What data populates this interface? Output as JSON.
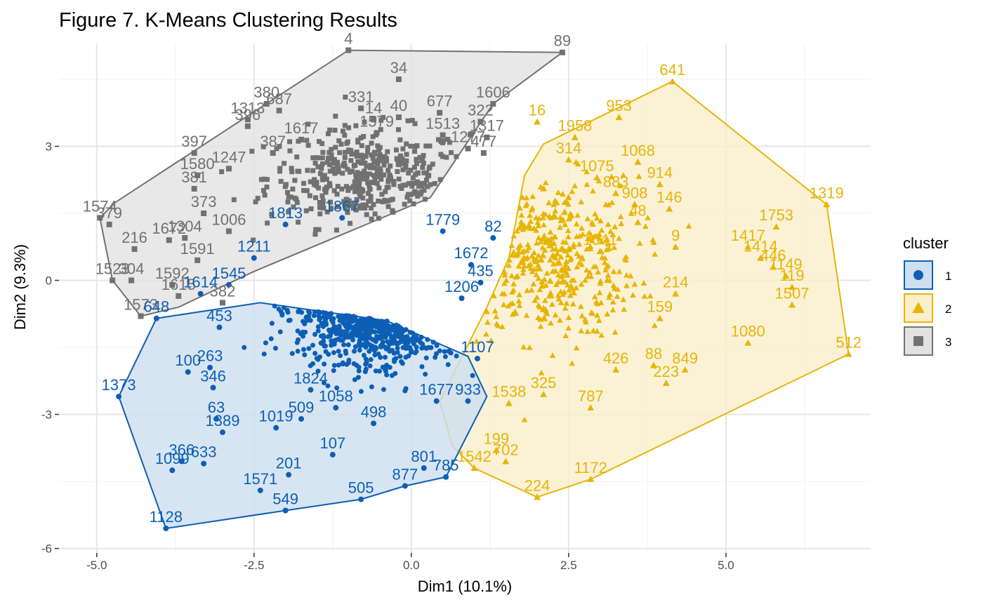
{
  "chart_data": {
    "type": "scatter",
    "title": "Figure 7. K-Means Clustering Results",
    "xlabel": "Dim1 (10.1%)",
    "ylabel": "Dim2 (9.3%)",
    "xlim": [
      -5.6,
      7.3
    ],
    "ylim": [
      -6.1,
      5.3
    ],
    "x_ticks": [
      -5.0,
      -2.5,
      0.0,
      2.5,
      5.0
    ],
    "x_tick_labels": [
      "-5.0",
      "-2.5",
      "0.0",
      "2.5",
      "5.0"
    ],
    "y_ticks": [
      -6,
      -3,
      0,
      3
    ],
    "y_tick_labels": [
      "-6",
      "-3",
      "0",
      "3"
    ],
    "grid": true,
    "legend": {
      "title": "cluster",
      "placement": "right",
      "entries": [
        {
          "label": "1",
          "color": "#0c5fb4",
          "fill": "#cddff0",
          "shape": "circle"
        },
        {
          "label": "2",
          "color": "#e7b508",
          "fill": "#faefcc",
          "shape": "triangle"
        },
        {
          "label": "3",
          "color": "#717171",
          "fill": "#e2e2e2",
          "shape": "square"
        }
      ]
    },
    "series": [
      {
        "name": "1",
        "color": "#0c5fb4",
        "hull_fill": "#cddff0",
        "shape": "circle",
        "hull": [
          [
            -3.9,
            -5.55
          ],
          [
            -2.0,
            -5.15
          ],
          [
            -0.8,
            -4.9
          ],
          [
            -0.1,
            -4.6
          ],
          [
            0.55,
            -4.4
          ],
          [
            1.2,
            -2.6
          ],
          [
            0.9,
            -1.7
          ],
          [
            -0.4,
            -0.9
          ],
          [
            -2.4,
            -0.5
          ],
          [
            -3.35,
            -0.7
          ],
          [
            -4.05,
            -0.85
          ],
          [
            -4.65,
            -2.6
          ]
        ],
        "dense_center": [
          -0.5,
          -0.6
        ],
        "dense_spread": [
          0.65,
          0.6
        ],
        "dense_count": 500,
        "points": [
          {
            "x": -4.65,
            "y": -2.6,
            "label": "1373"
          },
          {
            "x": -3.9,
            "y": -5.55,
            "label": "1128"
          },
          {
            "x": -3.55,
            "y": -2.05,
            "label": "100"
          },
          {
            "x": -3.8,
            "y": -4.25,
            "label": "1099"
          },
          {
            "x": -3.65,
            "y": -4.05,
            "label": "366"
          },
          {
            "x": -3.3,
            "y": -4.1,
            "label": "633"
          },
          {
            "x": -3.0,
            "y": -3.4,
            "label": "1389"
          },
          {
            "x": -3.1,
            "y": -3.1,
            "label": "63"
          },
          {
            "x": -3.15,
            "y": -2.4,
            "label": "346"
          },
          {
            "x": -3.2,
            "y": -1.95,
            "label": "263"
          },
          {
            "x": -3.05,
            "y": -1.05,
            "label": "453"
          },
          {
            "x": -2.4,
            "y": -4.7,
            "label": "1571"
          },
          {
            "x": -2.0,
            "y": -5.15,
            "label": "549"
          },
          {
            "x": -1.95,
            "y": -4.35,
            "label": "201"
          },
          {
            "x": -2.15,
            "y": -3.3,
            "label": "1019"
          },
          {
            "x": -1.75,
            "y": -3.1,
            "label": "509"
          },
          {
            "x": -1.25,
            "y": -3.9,
            "label": "107"
          },
          {
            "x": -0.8,
            "y": -4.9,
            "label": "505"
          },
          {
            "x": -0.6,
            "y": -3.2,
            "label": "498"
          },
          {
            "x": -0.1,
            "y": -4.6,
            "label": "877"
          },
          {
            "x": 0.2,
            "y": -4.2,
            "label": "801"
          },
          {
            "x": 0.55,
            "y": -4.4,
            "label": "785"
          },
          {
            "x": 0.9,
            "y": -2.7,
            "label": "933"
          },
          {
            "x": -4.05,
            "y": -0.85,
            "label": "648"
          },
          {
            "x": -3.35,
            "y": -0.3,
            "label": "1614"
          },
          {
            "x": -2.9,
            "y": -0.1,
            "label": "1545"
          },
          {
            "x": -2.5,
            "y": 0.5,
            "label": "1211"
          },
          {
            "x": -2.0,
            "y": 1.25,
            "label": "1813"
          },
          {
            "x": -1.1,
            "y": 1.4,
            "label": "1867"
          },
          {
            "x": 0.5,
            "y": 1.1,
            "label": "1779"
          },
          {
            "x": 1.3,
            "y": 0.95,
            "label": "82"
          },
          {
            "x": 1.1,
            "y": -0.05,
            "label": "435"
          },
          {
            "x": 0.95,
            "y": 0.35,
            "label": "1672"
          },
          {
            "x": 0.8,
            "y": -0.4,
            "label": "1206"
          },
          {
            "x": 1.05,
            "y": -1.75,
            "label": "1107"
          },
          {
            "x": 0.4,
            "y": -2.7,
            "label": "1677"
          },
          {
            "x": -1.6,
            "y": -2.45,
            "label": "1824"
          },
          {
            "x": -1.2,
            "y": -2.85,
            "label": "1058"
          }
        ]
      },
      {
        "name": "2",
        "color": "#e7b508",
        "hull_fill": "#faefcc",
        "shape": "triangle",
        "hull": [
          [
            4.15,
            4.45
          ],
          [
            6.6,
            1.7
          ],
          [
            6.95,
            -1.65
          ],
          [
            2.85,
            -4.45
          ],
          [
            2.0,
            -4.85
          ],
          [
            1.0,
            -4.2
          ],
          [
            0.65,
            -3.7
          ],
          [
            0.45,
            -2.7
          ],
          [
            1.2,
            -0.6
          ],
          [
            1.55,
            0.5
          ],
          [
            1.8,
            2.35
          ],
          [
            2.1,
            3.05
          ]
        ],
        "dense_center": [
          2.2,
          0.5
        ],
        "dense_spread": [
          0.7,
          0.9
        ],
        "dense_count": 420,
        "points": [
          {
            "x": 4.15,
            "y": 4.45,
            "label": "641"
          },
          {
            "x": 6.6,
            "y": 1.7,
            "label": "1319"
          },
          {
            "x": 6.95,
            "y": -1.65,
            "label": "512"
          },
          {
            "x": 5.8,
            "y": 1.2,
            "label": "1753"
          },
          {
            "x": 5.35,
            "y": 0.75,
            "label": "1417"
          },
          {
            "x": 5.55,
            "y": 0.5,
            "label": "1414"
          },
          {
            "x": 5.75,
            "y": 0.3,
            "label": "446"
          },
          {
            "x": 5.95,
            "y": 0.1,
            "label": "1149"
          },
          {
            "x": 6.05,
            "y": -0.15,
            "label": "119"
          },
          {
            "x": 6.05,
            "y": -0.55,
            "label": "1507"
          },
          {
            "x": 5.35,
            "y": -1.4,
            "label": "1080"
          },
          {
            "x": 3.3,
            "y": 3.65,
            "label": "953"
          },
          {
            "x": 3.6,
            "y": 2.65,
            "label": "1068"
          },
          {
            "x": 3.95,
            "y": 2.15,
            "label": "914"
          },
          {
            "x": 4.1,
            "y": 1.6,
            "label": "146"
          },
          {
            "x": 4.2,
            "y": 0.75,
            "label": "9"
          },
          {
            "x": 4.2,
            "y": -0.3,
            "label": "214"
          },
          {
            "x": 3.95,
            "y": -0.85,
            "label": "159"
          },
          {
            "x": 3.85,
            "y": -1.9,
            "label": "88"
          },
          {
            "x": 4.35,
            "y": -2.0,
            "label": "849"
          },
          {
            "x": 4.05,
            "y": -2.3,
            "label": "223"
          },
          {
            "x": 3.25,
            "y": -2.0,
            "label": "426"
          },
          {
            "x": 2.85,
            "y": -2.85,
            "label": "787"
          },
          {
            "x": 2.85,
            "y": -4.45,
            "label": "1172"
          },
          {
            "x": 2.0,
            "y": -4.85,
            "label": "224"
          },
          {
            "x": 1.5,
            "y": -4.05,
            "label": "702"
          },
          {
            "x": 1.35,
            "y": -3.8,
            "label": "199"
          },
          {
            "x": 1.0,
            "y": -4.2,
            "label": "1542"
          },
          {
            "x": 1.55,
            "y": -2.75,
            "label": "1538"
          },
          {
            "x": 2.1,
            "y": -2.55,
            "label": "325"
          },
          {
            "x": 2.0,
            "y": 3.55,
            "label": "16"
          },
          {
            "x": 2.6,
            "y": 3.2,
            "label": "1958"
          },
          {
            "x": 2.5,
            "y": 2.7,
            "label": "314"
          },
          {
            "x": 2.95,
            "y": 2.3,
            "label": "1075"
          },
          {
            "x": 3.25,
            "y": 1.95,
            "label": "883"
          },
          {
            "x": 3.55,
            "y": 1.7,
            "label": "908"
          },
          {
            "x": 3.6,
            "y": 1.3,
            "label": "48"
          },
          {
            "x": 3.0,
            "y": 0.65,
            "label": "1641"
          }
        ]
      },
      {
        "name": "3",
        "color": "#717171",
        "hull_fill": "#e2e2e2",
        "shape": "square",
        "hull": [
          [
            -1.0,
            5.15
          ],
          [
            2.4,
            5.1
          ],
          [
            1.3,
            3.95
          ],
          [
            0.3,
            1.85
          ],
          [
            -2.5,
            0.2
          ],
          [
            -3.7,
            -0.6
          ],
          [
            -4.3,
            -0.8
          ],
          [
            -4.75,
            0.0
          ],
          [
            -4.95,
            1.4
          ],
          [
            -4.7,
            1.75
          ]
        ],
        "dense_center": [
          -0.7,
          2.3
        ],
        "dense_spread": [
          0.8,
          0.55
        ],
        "dense_count": 420,
        "points": [
          {
            "x": -1.0,
            "y": 5.15,
            "label": "4"
          },
          {
            "x": 2.4,
            "y": 5.1,
            "label": "89"
          },
          {
            "x": -0.2,
            "y": 4.5,
            "label": "34"
          },
          {
            "x": -2.3,
            "y": 3.95,
            "label": "380"
          },
          {
            "x": -2.6,
            "y": 3.6,
            "label": "1313"
          },
          {
            "x": -2.1,
            "y": 3.8,
            "label": "687"
          },
          {
            "x": -0.8,
            "y": 3.85,
            "label": "331"
          },
          {
            "x": 0.45,
            "y": 3.75,
            "label": "677"
          },
          {
            "x": 1.3,
            "y": 3.95,
            "label": "1606"
          },
          {
            "x": -0.2,
            "y": 3.65,
            "label": "40"
          },
          {
            "x": -2.6,
            "y": 3.45,
            "label": "396"
          },
          {
            "x": -0.6,
            "y": 3.6,
            "label": "14"
          },
          {
            "x": -0.55,
            "y": 3.3,
            "label": "1579"
          },
          {
            "x": 0.5,
            "y": 3.25,
            "label": "1513"
          },
          {
            "x": 1.1,
            "y": 3.55,
            "label": "322"
          },
          {
            "x": 1.2,
            "y": 3.2,
            "label": "1317"
          },
          {
            "x": -3.45,
            "y": 2.85,
            "label": "397"
          },
          {
            "x": -3.4,
            "y": 2.35,
            "label": "1580"
          },
          {
            "x": -3.45,
            "y": 2.05,
            "label": "381"
          },
          {
            "x": -3.3,
            "y": 1.5,
            "label": "373"
          },
          {
            "x": -2.9,
            "y": 2.5,
            "label": "1247"
          },
          {
            "x": -4.95,
            "y": 1.4,
            "label": "1574"
          },
          {
            "x": -4.8,
            "y": 1.25,
            "label": "379"
          },
          {
            "x": -4.4,
            "y": 0.7,
            "label": "216"
          },
          {
            "x": -3.85,
            "y": 0.9,
            "label": "1672"
          },
          {
            "x": -3.6,
            "y": 0.95,
            "label": "1304"
          },
          {
            "x": -4.75,
            "y": 0.0,
            "label": "1523"
          },
          {
            "x": -4.45,
            "y": 0.0,
            "label": "304"
          },
          {
            "x": -3.8,
            "y": -0.1,
            "label": "1592"
          },
          {
            "x": -3.7,
            "y": -0.35,
            "label": "1615"
          },
          {
            "x": -4.3,
            "y": -0.8,
            "label": "1573"
          },
          {
            "x": -3.0,
            "y": -0.5,
            "label": "382"
          },
          {
            "x": -3.4,
            "y": 0.45,
            "label": "1591"
          },
          {
            "x": -2.9,
            "y": 1.1,
            "label": "1006"
          },
          {
            "x": 1.15,
            "y": 2.85,
            "label": "477"
          },
          {
            "x": 0.9,
            "y": 2.95,
            "label": "1277"
          },
          {
            "x": -2.2,
            "y": 2.85,
            "label": "387"
          },
          {
            "x": -1.75,
            "y": 3.15,
            "label": "1617"
          }
        ]
      }
    ]
  }
}
